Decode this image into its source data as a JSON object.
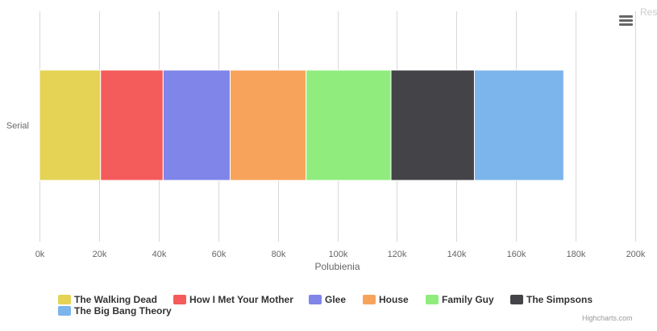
{
  "chart_data": {
    "type": "bar",
    "orientation": "horizontal",
    "stacked": true,
    "categories": [
      "Serial"
    ],
    "series": [
      {
        "name": "The Walking Dead",
        "values": [
          20500
        ],
        "color": "#e4d354"
      },
      {
        "name": "How I Met Your Mother",
        "values": [
          21000
        ],
        "color": "#f45b5b"
      },
      {
        "name": "Glee",
        "values": [
          22500
        ],
        "color": "#8085e9"
      },
      {
        "name": "House",
        "values": [
          25500
        ],
        "color": "#f7a35c"
      },
      {
        "name": "Family Guy",
        "values": [
          28500
        ],
        "color": "#90ed7d"
      },
      {
        "name": "The Simpsons",
        "values": [
          28000
        ],
        "color": "#434348"
      },
      {
        "name": "The Big Bang Theory",
        "values": [
          30000
        ],
        "color": "#7cb5ec"
      }
    ],
    "xlabel": "Polubienia",
    "xlim": [
      0,
      200000
    ],
    "ticks": [
      "0k",
      "20k",
      "40k",
      "60k",
      "80k",
      "100k",
      "120k",
      "140k",
      "160k",
      "180k",
      "200k"
    ],
    "grid": true,
    "legend_position": "bottom"
  },
  "toolbar": {
    "reset_label": "Res",
    "menu_icon": "hamburger-menu-icon"
  },
  "credits": "Highcharts.com"
}
